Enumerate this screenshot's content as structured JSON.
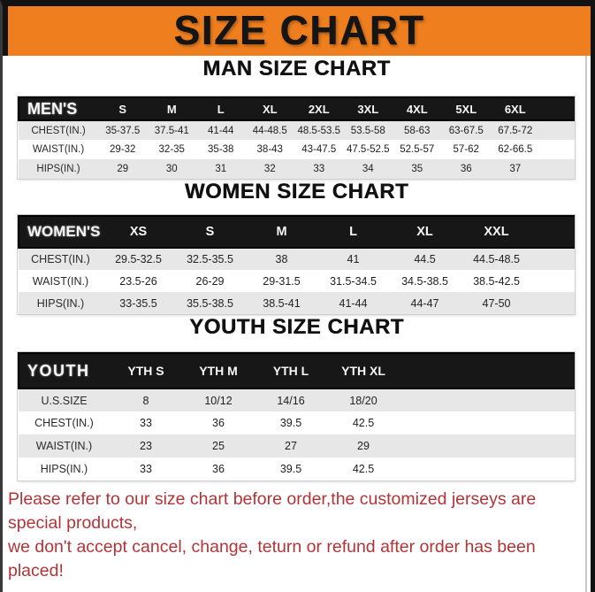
{
  "title": "SIZE CHART",
  "colors": {
    "accent": "#EE7E1E",
    "bar": "#121212",
    "header": "#171717",
    "row_alt": "#E7E7E7",
    "notice": "#B23438"
  },
  "sections": [
    {
      "heading": "MAN SIZE CHART",
      "table": {
        "label": "MEN'S",
        "columns": [
          "S",
          "M",
          "L",
          "XL",
          "2XL",
          "3XL",
          "4XL",
          "5XL",
          "6XL"
        ],
        "rows": [
          {
            "label": "CHEST(IN.)",
            "values": [
              "35-37.5",
              "37.5-41",
              "41-44",
              "44-48.5",
              "48.5-53.5",
              "53.5-58",
              "58-63",
              "63-67.5",
              "67.5-72"
            ]
          },
          {
            "label": "WAIST(IN.)",
            "values": [
              "29-32",
              "32-35",
              "35-38",
              "38-43",
              "43-47.5",
              "47.5-52.5",
              "52.5-57",
              "57-62",
              "62-66.5"
            ]
          },
          {
            "label": "HIPS(IN.)",
            "values": [
              "29",
              "30",
              "31",
              "32",
              "33",
              "34",
              "35",
              "36",
              "37"
            ]
          }
        ]
      }
    },
    {
      "heading": "WOMEN SIZE CHART",
      "table": {
        "label": "WOMEN'S",
        "columns": [
          "XS",
          "S",
          "M",
          "L",
          "XL",
          "XXL"
        ],
        "rows": [
          {
            "label": "CHEST(IN.)",
            "values": [
              "29.5-32.5",
              "32.5-35.5",
              "38",
              "41",
              "44.5",
              "44.5-48.5"
            ]
          },
          {
            "label": "WAIST(IN.)",
            "values": [
              "23.5-26",
              "26-29",
              "29-31.5",
              "31.5-34.5",
              "34.5-38.5",
              "38.5-42.5"
            ]
          },
          {
            "label": "HIPS(IN.)",
            "values": [
              "33-35.5",
              "35.5-38.5",
              "38.5-41",
              "41-44",
              "44-47",
              "47-50"
            ]
          }
        ]
      }
    },
    {
      "heading": "YOUTH SIZE CHART",
      "table": {
        "label": "YOUTH",
        "columns": [
          "YTH S",
          "YTH M",
          "YTH L",
          "YTH XL"
        ],
        "rows": [
          {
            "label": "U.S.SIZE",
            "values": [
              "8",
              "10/12",
              "14/16",
              "18/20"
            ]
          },
          {
            "label": "CHEST(IN.)",
            "values": [
              "33",
              "36",
              "39.5",
              "42.5"
            ]
          },
          {
            "label": "WAIST(IN.)",
            "values": [
              "23",
              "25",
              "27",
              "29"
            ]
          },
          {
            "label": "HIPS(IN.)",
            "values": [
              "33",
              "36",
              "39.5",
              "42.5"
            ]
          }
        ]
      }
    }
  ],
  "footer": {
    "line1": "Please refer to our size chart before order,the customized jerseys are special products,",
    "line2": "we don't accept cancel, change, teturn or refund after order has been placed!"
  }
}
